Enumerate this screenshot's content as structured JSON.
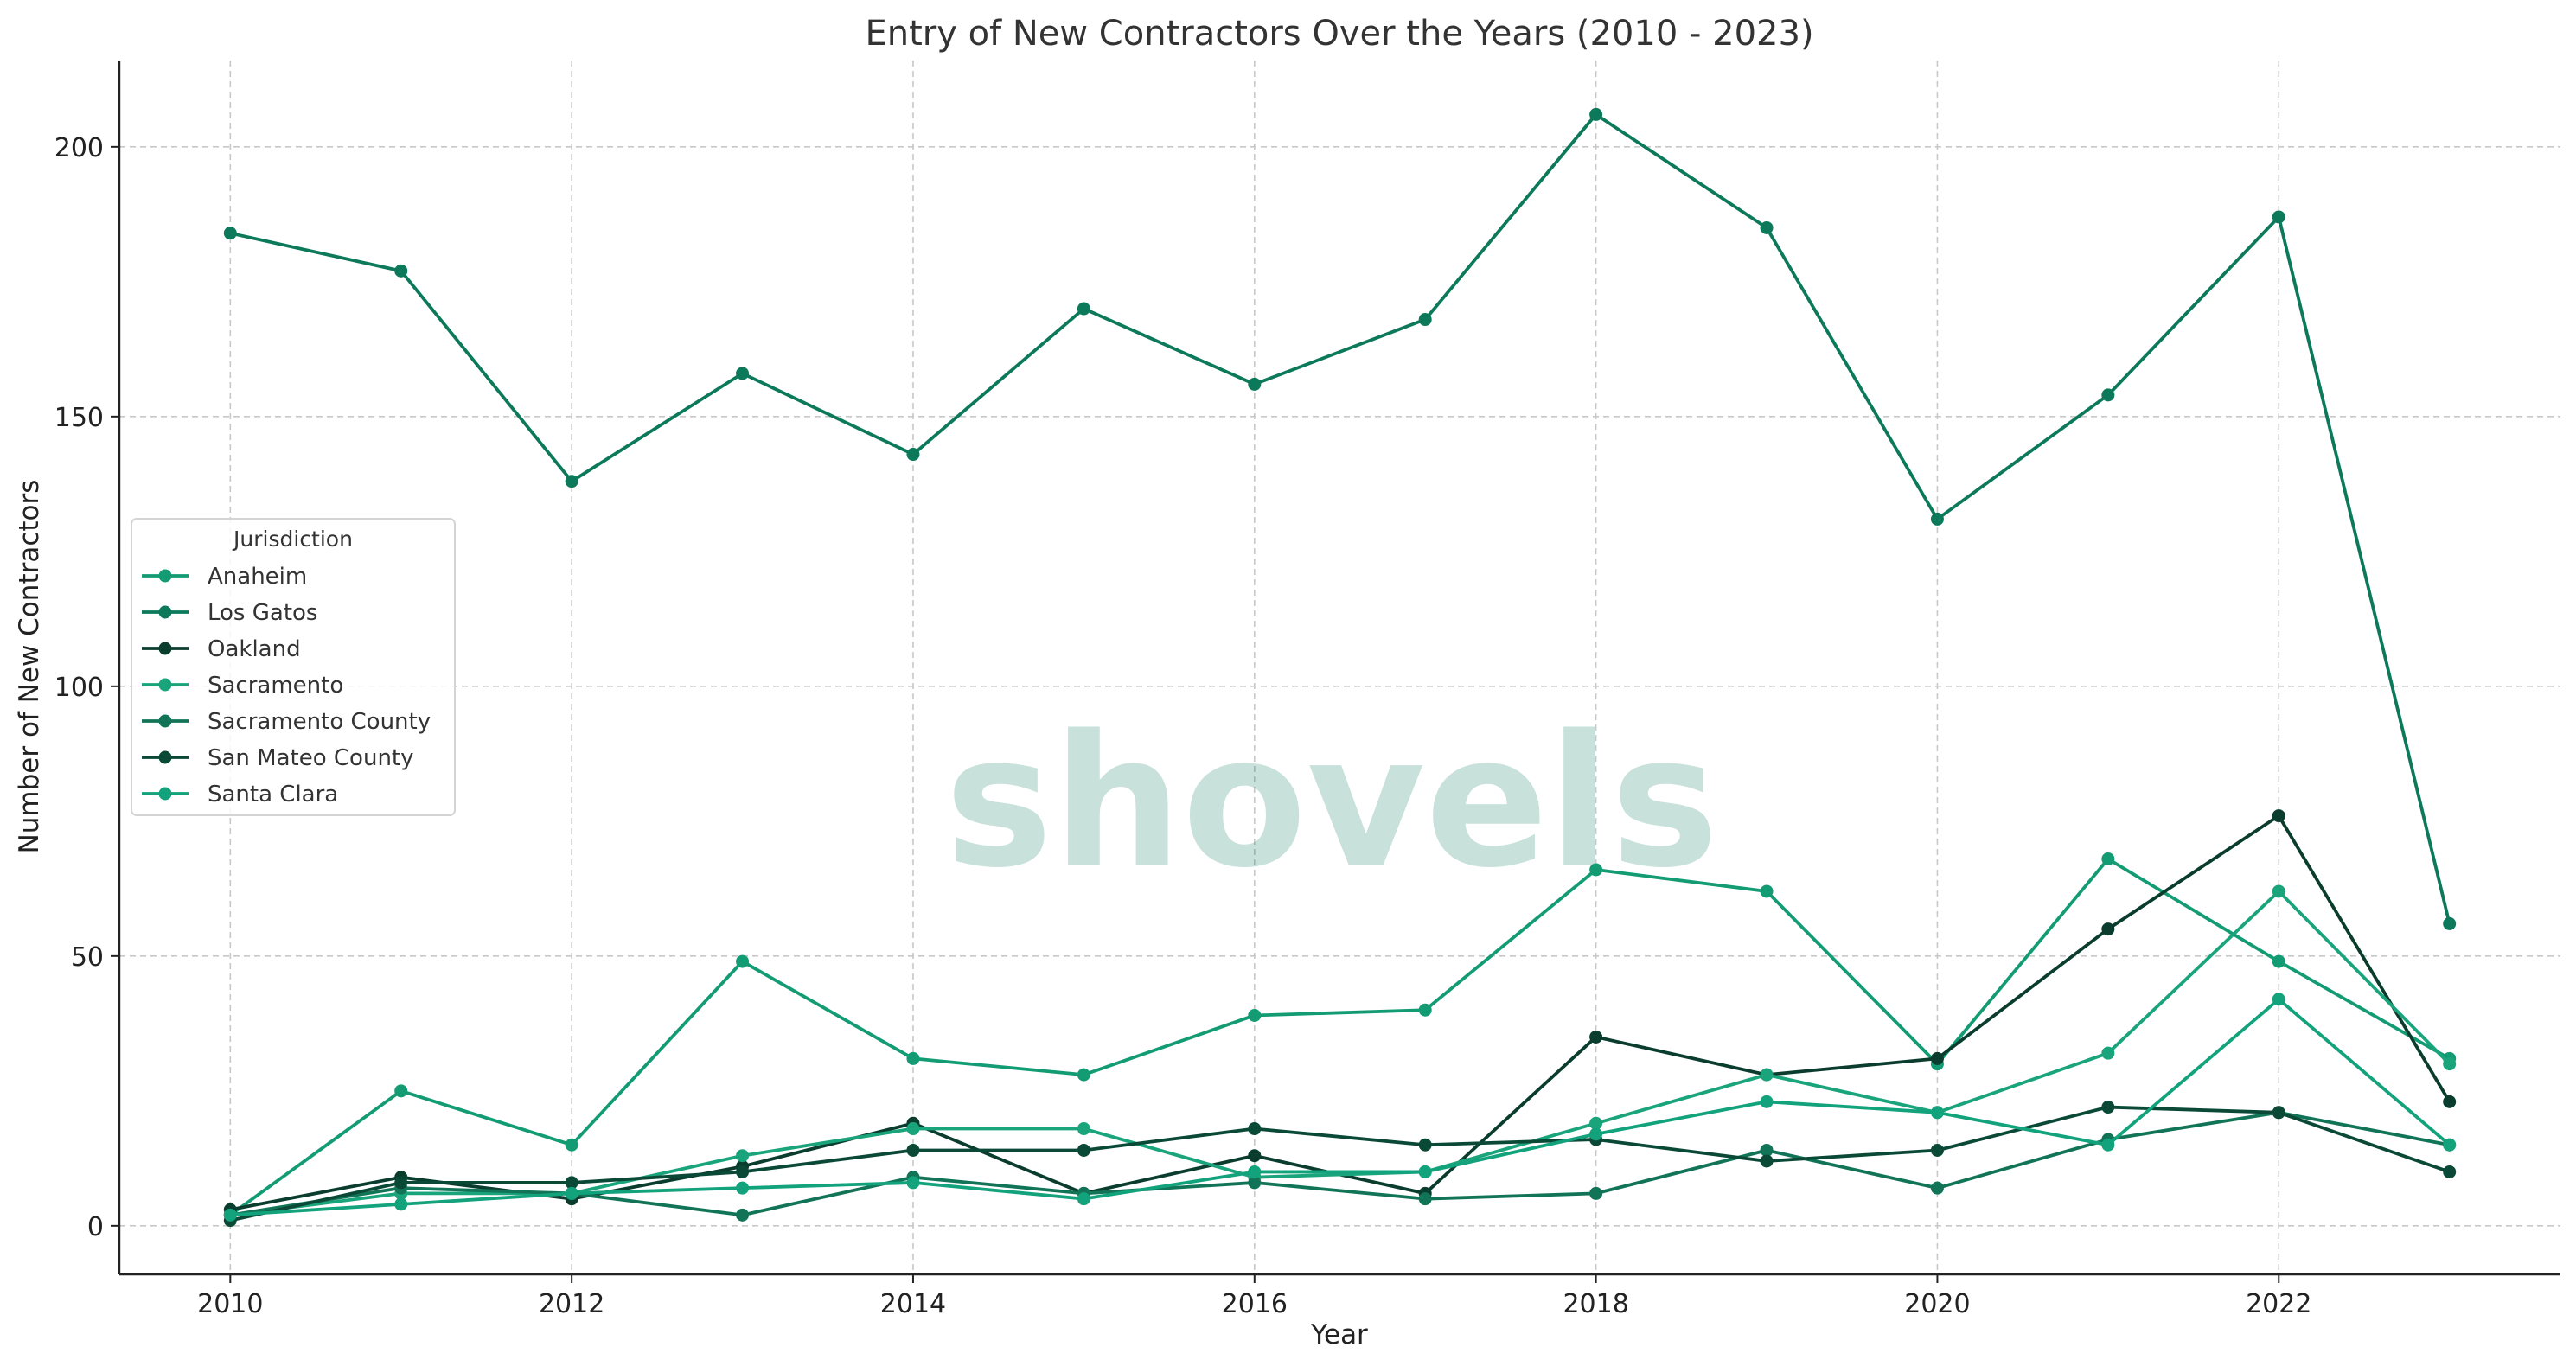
{
  "chart_data": {
    "type": "line",
    "title": "Entry of New Contractors Over the Years (2010 - 2023)",
    "xlabel": "Year",
    "ylabel": "Number of New Contractors",
    "x": [
      2010,
      2011,
      2012,
      2013,
      2014,
      2015,
      2016,
      2017,
      2018,
      2019,
      2020,
      2021,
      2022,
      2023
    ],
    "xlim": [
      2009.35,
      2023.65
    ],
    "ylim": [
      -9,
      216
    ],
    "xticks": [
      2010,
      2012,
      2014,
      2016,
      2018,
      2020,
      2022
    ],
    "yticks": [
      0,
      50,
      100,
      150,
      200
    ],
    "grid": true,
    "legend": {
      "title": "Jurisdiction",
      "position": "center-left"
    },
    "watermark": "shovels",
    "series": [
      {
        "name": "Anaheim",
        "color": "#139c74",
        "values": [
          2,
          25,
          15,
          49,
          31,
          28,
          39,
          40,
          66,
          62,
          30,
          68,
          49,
          31
        ]
      },
      {
        "name": "Los Gatos",
        "color": "#0c7a5a",
        "values": [
          184,
          177,
          138,
          158,
          143,
          170,
          156,
          168,
          206,
          185,
          131,
          154,
          187,
          56
        ]
      },
      {
        "name": "Oakland",
        "color": "#0a3d2e",
        "values": [
          3,
          9,
          5,
          11,
          19,
          6,
          13,
          6,
          35,
          28,
          31,
          55,
          76,
          23
        ]
      },
      {
        "name": "Sacramento",
        "color": "#1aa47c",
        "values": [
          2,
          6,
          6,
          13,
          18,
          18,
          9,
          10,
          19,
          28,
          21,
          32,
          62,
          30
        ]
      },
      {
        "name": "Sacramento County",
        "color": "#127457",
        "values": [
          2,
          7,
          6,
          2,
          9,
          6,
          8,
          5,
          6,
          14,
          7,
          16,
          21,
          15
        ]
      },
      {
        "name": "San Mateo County",
        "color": "#0b4937",
        "values": [
          1,
          8,
          8,
          10,
          14,
          14,
          18,
          15,
          16,
          12,
          14,
          22,
          21,
          10
        ]
      },
      {
        "name": "Santa Clara",
        "color": "#12a27c",
        "values": [
          2,
          4,
          6,
          7,
          8,
          5,
          10,
          10,
          17,
          23,
          21,
          15,
          42,
          15
        ]
      }
    ]
  }
}
